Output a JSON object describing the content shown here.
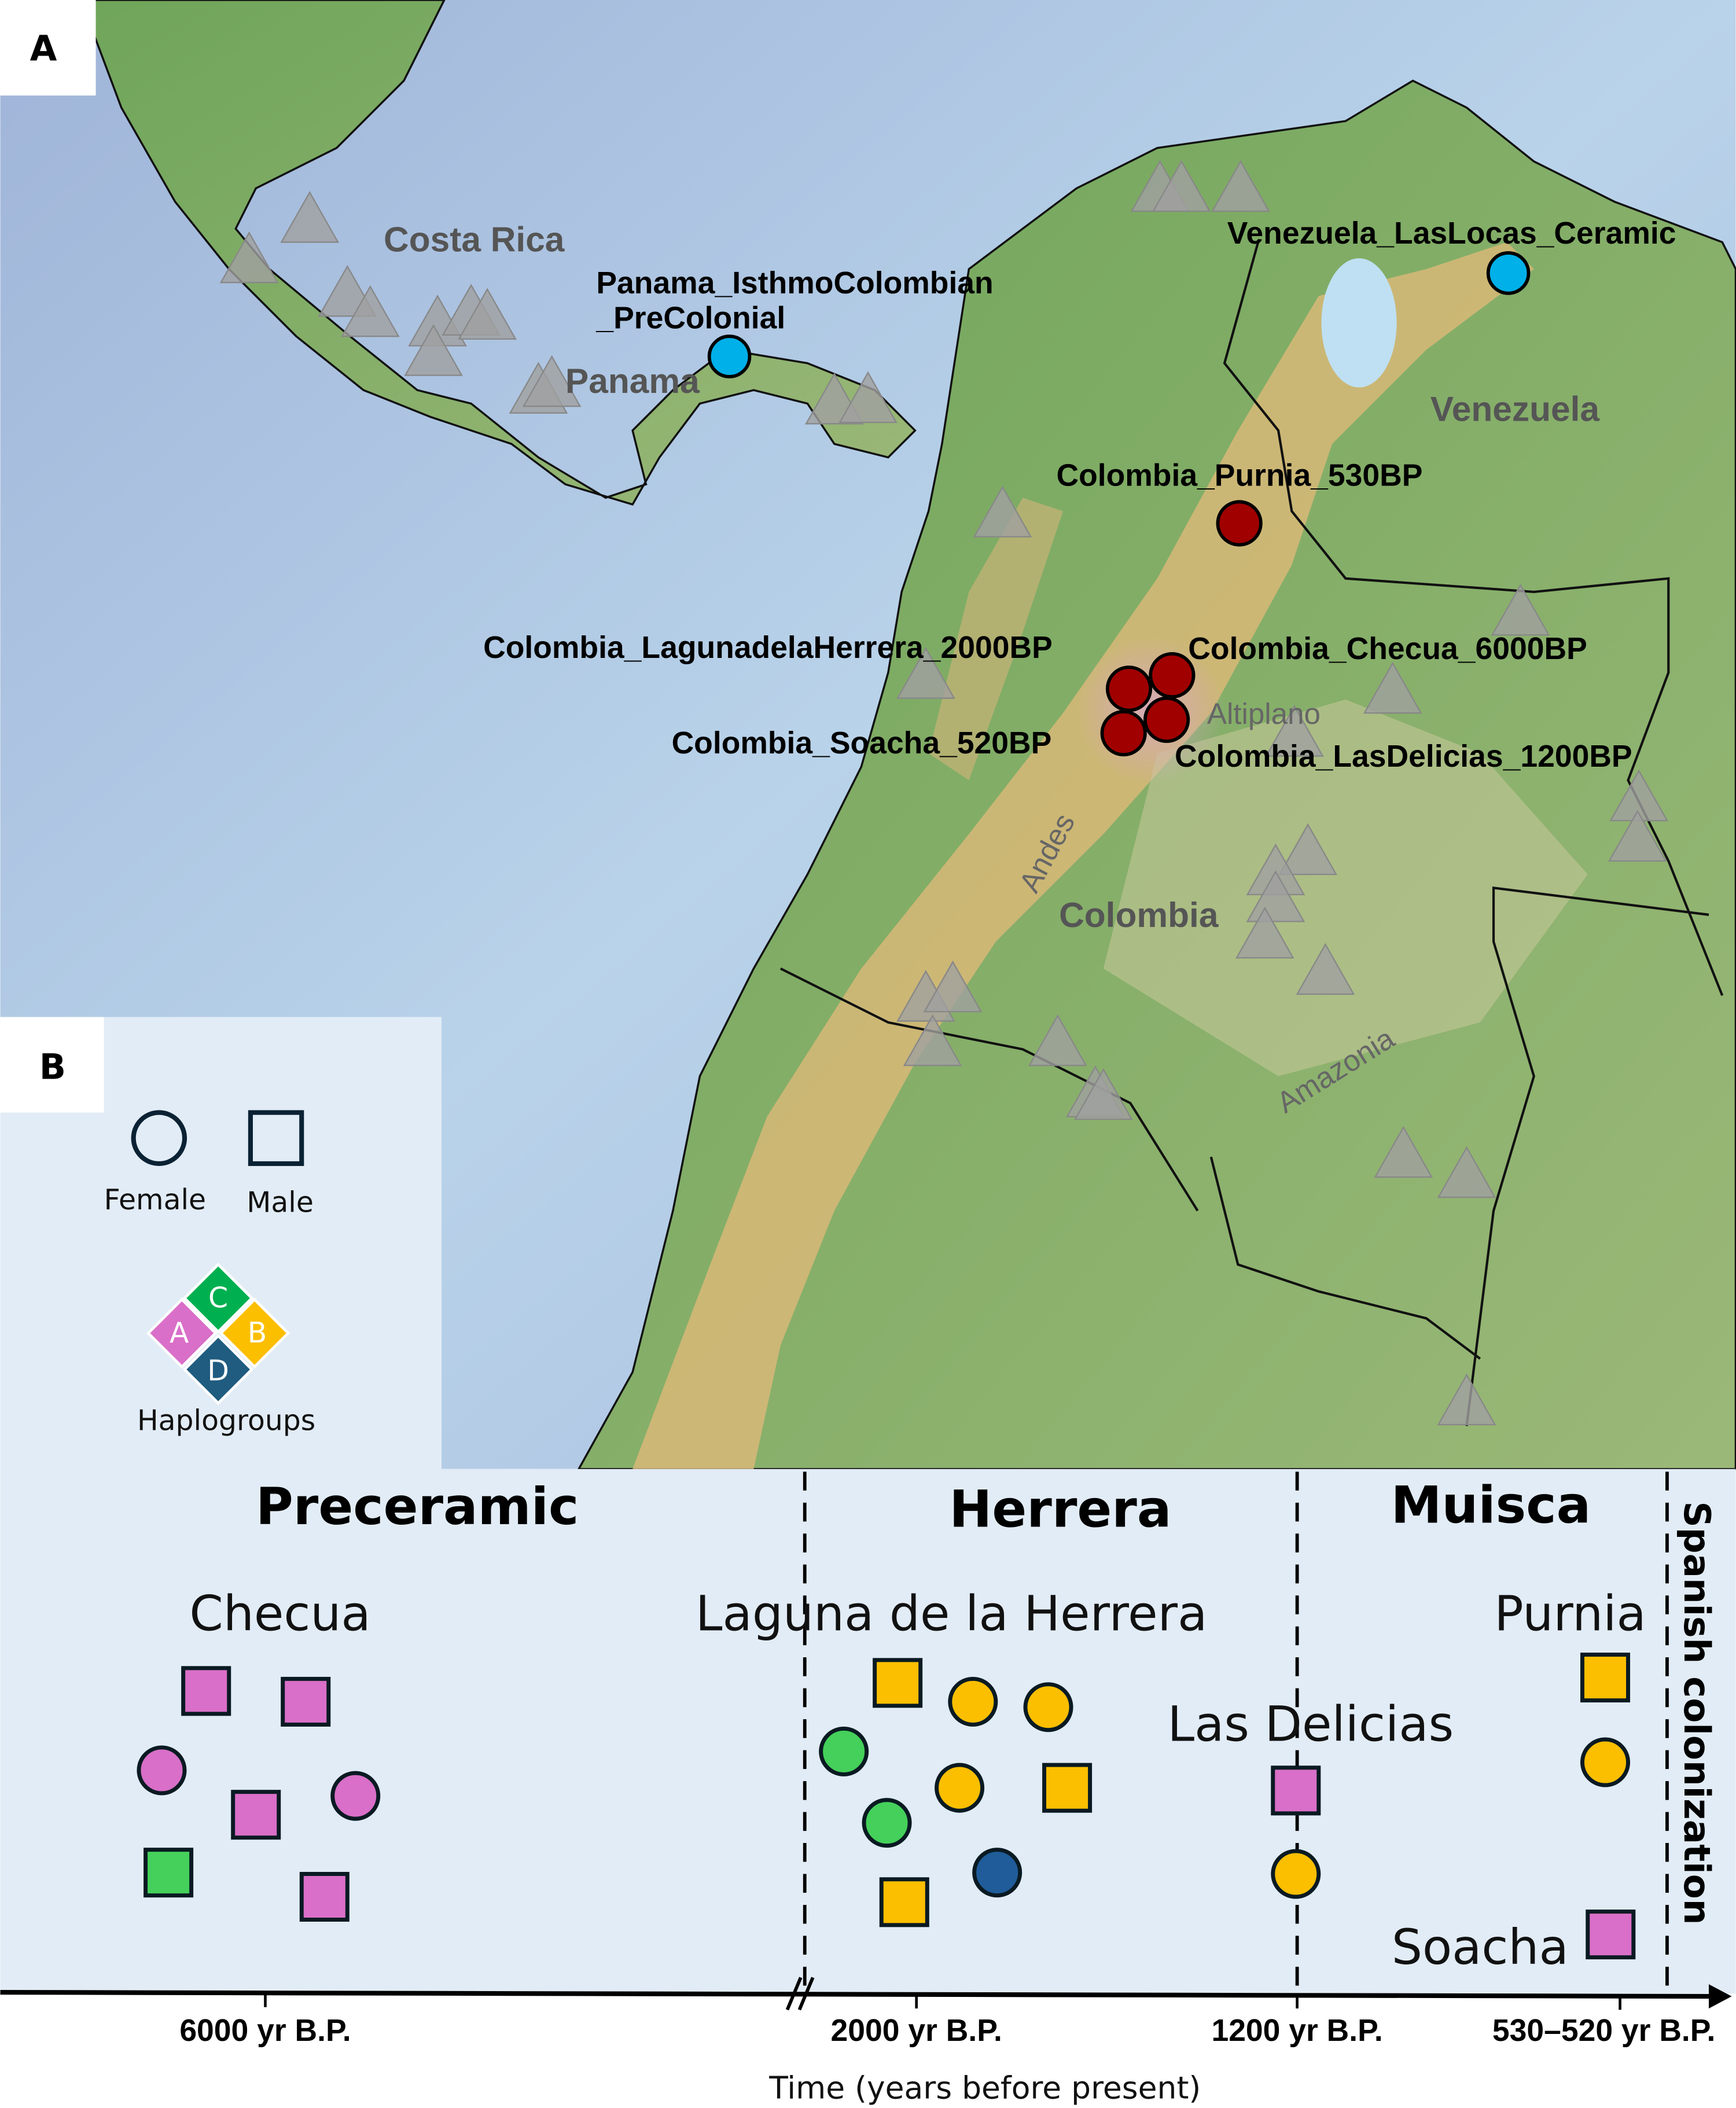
{
  "panels": {
    "a": "A",
    "b": "B"
  },
  "map": {
    "countries": [
      "Costa Rica",
      "Panama",
      "Venezuela",
      "Colombia"
    ],
    "regions": [
      "Altiplano",
      "Andes",
      "Amazonia"
    ],
    "sites": [
      {
        "label": "Venezuela_LasLocas_Ceramic",
        "color": "#00b0e8"
      },
      {
        "label": "Panama_IsthmoColombian",
        "label2": "_PreColonial",
        "color": "#00b0e8"
      },
      {
        "label": "Colombia_Purnia_530BP",
        "color": "#a00000"
      },
      {
        "label": "Colombia_LagunadelaHerrera_2000BP",
        "color": "#a00000"
      },
      {
        "label": "Colombia_Checua_6000BP",
        "color": "#a00000"
      },
      {
        "label": "Colombia_Soacha_520BP",
        "color": "#a00000"
      },
      {
        "label": "Colombia_LasDelicias_1200BP",
        "color": "#a00000"
      }
    ],
    "reference_marker": "gray-triangle"
  },
  "legend": {
    "female": "Female",
    "male": "Male",
    "haplogroups_label": "Haplogroups",
    "haplogroups": [
      {
        "name": "A",
        "color": "#d96fc8"
      },
      {
        "name": "B",
        "color": "#fbbf00"
      },
      {
        "name": "C",
        "color": "#00b050"
      },
      {
        "name": "D",
        "color": "#1f5c80"
      }
    ]
  },
  "timeline": {
    "periods": [
      "Preceramic",
      "Herrera",
      "Muisca"
    ],
    "spanish": "Spanish colonization",
    "sites": [
      "Checua",
      "Laguna de la Herrera",
      "Las Delicias",
      "Purnia",
      "Soacha"
    ],
    "ticks": [
      "6000 yr B.P.",
      "2000 yr B.P.",
      "1200 yr B.P.",
      "530–520 yr B.P."
    ],
    "xlabel": "Time (years before present)",
    "hap_colors": {
      "A": "#d96fc8",
      "B": "#fbbf00",
      "C": "#44d05a",
      "D": "#1f5c99"
    },
    "individuals": [
      {
        "site": "Checua",
        "sex": "M",
        "hg": "A"
      },
      {
        "site": "Checua",
        "sex": "M",
        "hg": "A"
      },
      {
        "site": "Checua",
        "sex": "F",
        "hg": "A"
      },
      {
        "site": "Checua",
        "sex": "M",
        "hg": "A"
      },
      {
        "site": "Checua",
        "sex": "F",
        "hg": "A"
      },
      {
        "site": "Checua",
        "sex": "M",
        "hg": "C"
      },
      {
        "site": "Checua",
        "sex": "M",
        "hg": "A"
      },
      {
        "site": "Laguna de la Herrera",
        "sex": "M",
        "hg": "B"
      },
      {
        "site": "Laguna de la Herrera",
        "sex": "F",
        "hg": "B"
      },
      {
        "site": "Laguna de la Herrera",
        "sex": "F",
        "hg": "B"
      },
      {
        "site": "Laguna de la Herrera",
        "sex": "F",
        "hg": "C"
      },
      {
        "site": "Laguna de la Herrera",
        "sex": "F",
        "hg": "B"
      },
      {
        "site": "Laguna de la Herrera",
        "sex": "M",
        "hg": "B"
      },
      {
        "site": "Laguna de la Herrera",
        "sex": "F",
        "hg": "C"
      },
      {
        "site": "Laguna de la Herrera",
        "sex": "F",
        "hg": "D"
      },
      {
        "site": "Laguna de la Herrera",
        "sex": "M",
        "hg": "B"
      },
      {
        "site": "Las Delicias",
        "sex": "M",
        "hg": "A"
      },
      {
        "site": "Las Delicias",
        "sex": "F",
        "hg": "B"
      },
      {
        "site": "Purnia",
        "sex": "M",
        "hg": "B"
      },
      {
        "site": "Purnia",
        "sex": "F",
        "hg": "B"
      },
      {
        "site": "Soacha",
        "sex": "M",
        "hg": "A"
      }
    ]
  }
}
